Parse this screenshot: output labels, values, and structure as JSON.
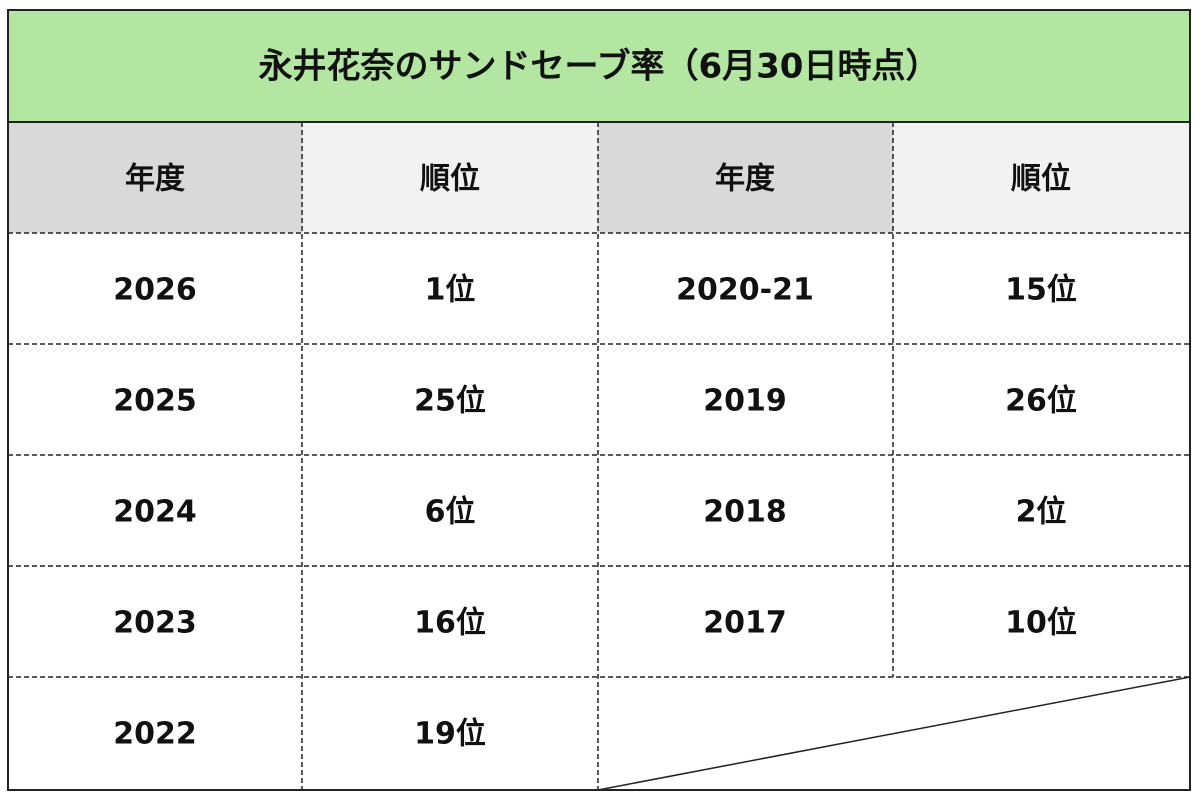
{
  "header": {
    "title": "永井花奈のサンドセーブ率（6月30日時点）"
  },
  "table": {
    "headers": [
      "年度",
      "順位",
      "年度",
      "順位"
    ],
    "rows": [
      [
        "2026",
        "1位",
        "2020-21",
        "15位"
      ],
      [
        "2025",
        "25位",
        "2019",
        "26位"
      ],
      [
        "2024",
        "6位",
        "2018",
        "2位"
      ],
      [
        "2023",
        "16位",
        "2017",
        "10位"
      ],
      [
        "2022",
        "19位"
      ]
    ]
  }
}
